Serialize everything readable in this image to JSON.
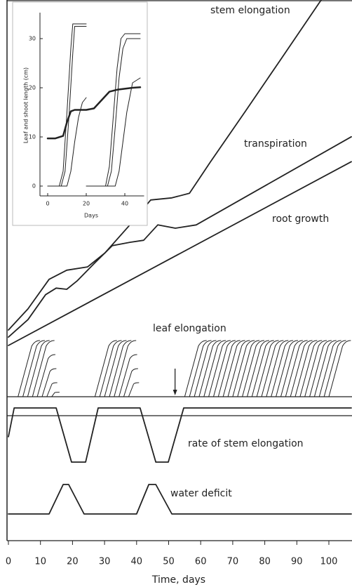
{
  "chart_data": [
    {
      "type": "line",
      "xlim": [
        0,
        107
      ],
      "ylim": [
        0,
        100
      ],
      "series": [
        {
          "name": "stem elongation",
          "color": "#222222",
          "x": [
            0,
            6.1,
            12.7,
            18.2,
            24.7,
            30.2,
            37.9,
            44.4,
            51.0,
            56.5,
            63.0,
            74.0,
            84.9,
            97.6
          ],
          "values": [
            20.6,
            25.7,
            32.8,
            35.0,
            35.8,
            39.2,
            45.9,
            51.9,
            52.4,
            53.5,
            61.0,
            73.3,
            85.6,
            100
          ]
        },
        {
          "name": "transpiration",
          "color": "#222222",
          "x": [
            0,
            6.1,
            11.6,
            14.9,
            18.2,
            21.4,
            26.9,
            32.4,
            37.9,
            42.2,
            46.6,
            52.1,
            58.6,
            107
          ],
          "values": [
            18.9,
            23.1,
            29.1,
            30.7,
            30.4,
            32.4,
            36.7,
            40.9,
            41.7,
            42.2,
            45.9,
            45.1,
            45.9,
            67.1
          ]
        },
        {
          "name": "root growth",
          "color": "#222222",
          "x": [
            0,
            107
          ],
          "values": [
            16.9,
            61.1
          ]
        }
      ]
    },
    {
      "type": "stripes",
      "title": "leaf elongation",
      "xlim": [
        0,
        107
      ],
      "ylim": [
        0,
        100
      ],
      "color": "#222222",
      "starts": [
        3,
        4.5,
        6,
        7.5,
        9,
        10.5,
        12,
        13.5,
        27,
        28.5,
        30,
        31.5,
        33,
        34.5,
        36,
        37.5,
        55,
        56.5,
        58,
        59.5,
        61,
        62.5,
        64,
        65.5,
        67,
        68.5,
        70,
        71.5,
        73,
        74.5,
        76,
        77.5,
        79,
        80.5,
        82,
        83.5,
        85,
        86.5,
        88,
        89.5,
        91,
        92.5,
        94,
        95.5,
        97,
        98.5,
        100
      ],
      "values": [
        100,
        100,
        100,
        100,
        75,
        50,
        25,
        8,
        100,
        100,
        100,
        100,
        100,
        75,
        50,
        25,
        100,
        100,
        100,
        100,
        100,
        100,
        100,
        100,
        100,
        100,
        100,
        100,
        100,
        100,
        100,
        100,
        100,
        100,
        100,
        100,
        100,
        100,
        100,
        100,
        100,
        100,
        100,
        100,
        100,
        100,
        100
      ],
      "marker_x": 52
    },
    {
      "type": "line",
      "xlim": [
        0,
        107
      ],
      "ylim": [
        0,
        100
      ],
      "xticks": [
        0,
        10,
        20,
        30,
        40,
        50,
        60,
        70,
        80,
        90,
        100
      ],
      "xlabel": "Time, days",
      "series": [
        {
          "name": "rate of stem elongation",
          "color": "#222222",
          "x": [
            0,
            1.8,
            14.9,
            19.7,
            24.1,
            28.0,
            41.1,
            46.0,
            49.9,
            54.7,
            107
          ],
          "values": [
            75.9,
            96.9,
            96.9,
            57.4,
            57.4,
            96.9,
            96.9,
            57.4,
            57.4,
            96.9,
            96.9
          ]
        },
        {
          "name": "water deficit",
          "color": "#222222",
          "x": [
            0,
            12.7,
            17.1,
            18.8,
            23.6,
            40.0,
            43.8,
            46.0,
            51.0,
            107
          ],
          "values": [
            19.5,
            19.5,
            41.0,
            41.0,
            19.5,
            19.5,
            41.0,
            41.0,
            19.5,
            19.5
          ]
        }
      ]
    },
    {
      "type": "line",
      "xlim": [
        -4,
        50
      ],
      "ylim": [
        -2,
        35
      ],
      "xticks": [
        0,
        20,
        40
      ],
      "yticks": [
        0,
        10,
        20,
        30
      ],
      "xlabel": "Days",
      "ylabel": "Leaf and shoot length (cm)",
      "series": [
        {
          "color": "#222222",
          "linewidth": 2.5,
          "x": [
            0,
            4,
            8,
            10,
            12,
            14,
            20,
            24,
            28,
            32,
            36,
            40,
            44,
            48
          ],
          "values": [
            9.7,
            9.7,
            10.2,
            13,
            15.2,
            15.5,
            15.5,
            15.8,
            17.5,
            19.2,
            19.6,
            19.8,
            20.0,
            20.1
          ]
        },
        {
          "color": "#222222",
          "linewidth": 1,
          "x": [
            0,
            6,
            8,
            10,
            12,
            13,
            20
          ],
          "values": [
            0,
            0,
            3,
            15,
            28,
            33,
            33
          ]
        },
        {
          "color": "#222222",
          "linewidth": 1,
          "x": [
            0,
            7,
            9,
            11,
            13,
            14,
            20
          ],
          "values": [
            0,
            0,
            3,
            14,
            27,
            32.5,
            32.5
          ]
        },
        {
          "color": "#222222",
          "linewidth": 1,
          "x": [
            4,
            10,
            12,
            14,
            16,
            18,
            20
          ],
          "values": [
            0,
            0,
            3,
            9,
            14,
            17,
            18
          ]
        },
        {
          "color": "#222222",
          "linewidth": 1,
          "x": [
            20,
            30,
            32,
            34,
            36,
            38,
            40,
            48
          ],
          "values": [
            0,
            0,
            4,
            14,
            24,
            30,
            31,
            31
          ]
        },
        {
          "color": "#222222",
          "linewidth": 1,
          "x": [
            22,
            31,
            33,
            35,
            37,
            39,
            41,
            48
          ],
          "values": [
            0,
            0,
            3,
            12,
            22,
            28,
            30,
            30
          ]
        },
        {
          "color": "#222222",
          "linewidth": 1,
          "x": [
            26,
            35,
            37,
            39,
            41,
            44,
            48
          ],
          "values": [
            0,
            0,
            3,
            9,
            15,
            21,
            22
          ]
        }
      ]
    }
  ]
}
